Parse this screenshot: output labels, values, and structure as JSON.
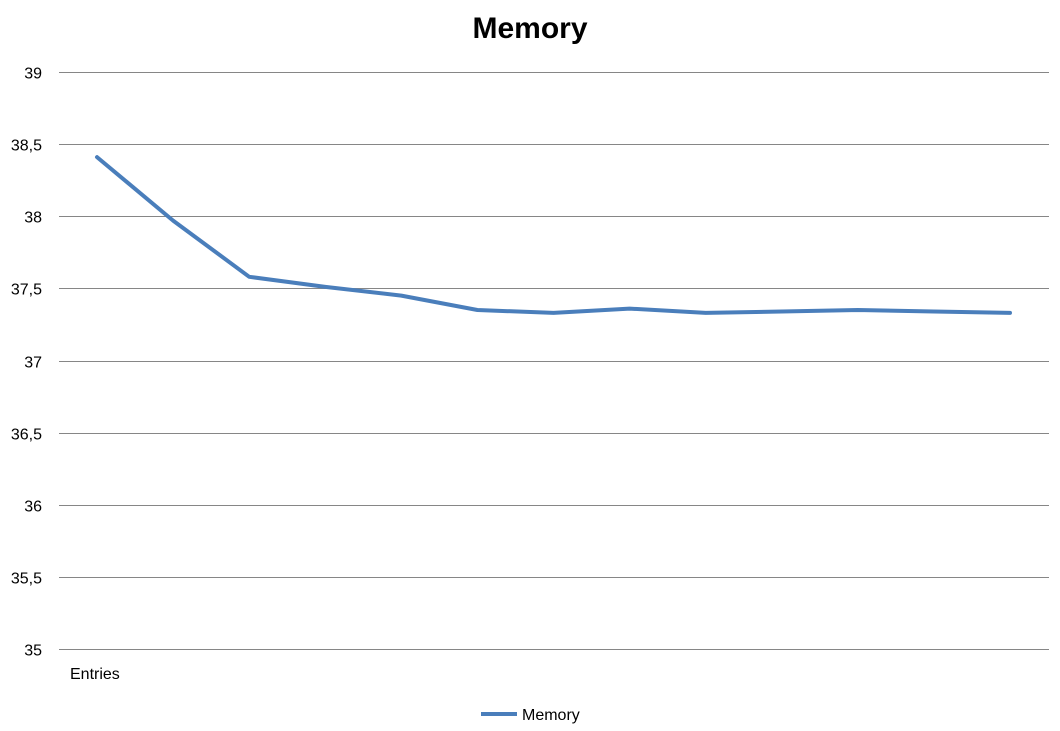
{
  "chart_data": {
    "type": "line",
    "title": "Memory",
    "xlabel": "",
    "ylabel": "",
    "categories": [
      "Entries",
      "",
      "",
      "",
      "",
      "",
      "",
      "",
      "",
      "",
      "",
      "",
      ""
    ],
    "ylim": [
      35,
      39
    ],
    "yticks": [
      35,
      35.5,
      36,
      36.5,
      37,
      37.5,
      38,
      38.5,
      39
    ],
    "ytick_labels": [
      "35",
      "35,5",
      "36",
      "36,5",
      "37",
      "37,5",
      "38",
      "38,5",
      "39"
    ],
    "grid": true,
    "legend_position": "bottom",
    "series": [
      {
        "name": "Memory",
        "color": "#4a7ebb",
        "values": [
          38.41,
          37.97,
          37.58,
          37.51,
          37.45,
          37.35,
          37.33,
          37.36,
          37.33,
          37.34,
          37.35,
          37.34,
          37.33
        ]
      }
    ]
  }
}
